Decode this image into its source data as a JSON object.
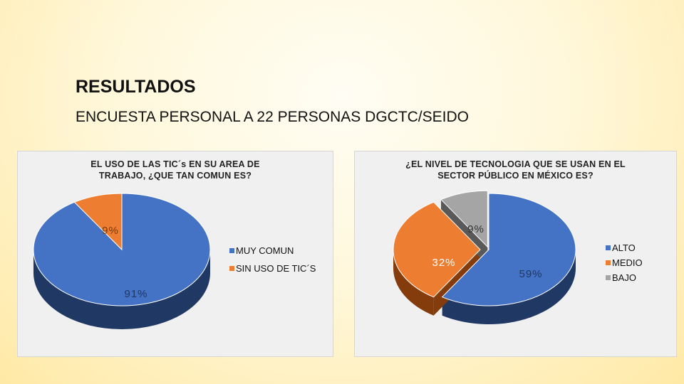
{
  "slide": {
    "title": "RESULTADOS",
    "subtitle": "ENCUESTA PERSONAL A 22 PERSONAS DGCTC/SEIDO"
  },
  "chart_data": [
    {
      "type": "pie",
      "title_lines": [
        "EL USO DE LAS TIC´s EN SU AREA DE",
        "TRABAJO, ¿QUE TAN COMUN ES?"
      ],
      "categories": [
        "MUY COMUN",
        "SIN USO DE TIC´S"
      ],
      "values": [
        91,
        9
      ],
      "data_labels": [
        "91%",
        "9%"
      ],
      "colors": [
        "#4472c4",
        "#ed7d31"
      ],
      "side_colors": [
        "#203864",
        "#843c0c"
      ],
      "style": "3d",
      "legend": "right"
    },
    {
      "type": "pie",
      "title_lines": [
        "¿EL NIVEL DE TECNOLOGIA QUE SE USAN EN EL",
        "SECTOR PÚBLICO EN MÉXICO ES?"
      ],
      "categories": [
        "ALTO",
        "MEDIO",
        "BAJO"
      ],
      "values": [
        59,
        32,
        9
      ],
      "data_labels": [
        "59%",
        "32%",
        "9%"
      ],
      "colors": [
        "#4472c4",
        "#ed7d31",
        "#a5a5a5"
      ],
      "side_colors": [
        "#203864",
        "#843c0c",
        "#595959"
      ],
      "style": "3d-exploded",
      "legend": "right"
    }
  ]
}
